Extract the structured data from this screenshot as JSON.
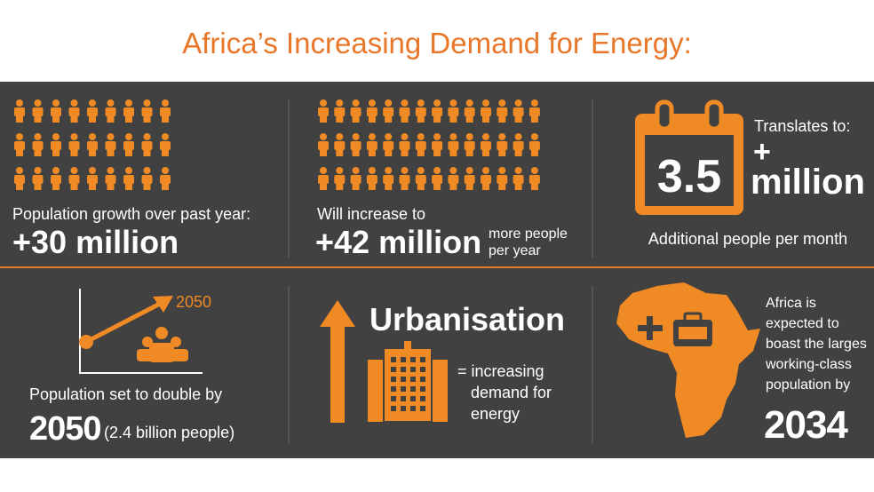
{
  "title": "Africa’s Increasing Demand for Energy:",
  "panels": [
    {
      "label": "Population growth over past year:",
      "value": "+30 million"
    },
    {
      "label": "Will increase to",
      "value": "+42 million",
      "note": [
        "more people",
        "per year"
      ]
    },
    {
      "label": "Translates to:",
      "number": "3.5",
      "plus": "+",
      "unit": "million",
      "caption": "Additional people per month"
    },
    {
      "chart_label": "2050",
      "label": "Population set to double by",
      "value": "2050",
      "note": "(2.4 billion people)"
    },
    {
      "heading": "Urbanisation",
      "lines": [
        "= increasing",
        "demand for",
        "energy"
      ]
    },
    {
      "lines": [
        "Africa is",
        "expected to",
        "boast the larges",
        "working-class",
        "population by"
      ],
      "value": "2034"
    }
  ]
}
